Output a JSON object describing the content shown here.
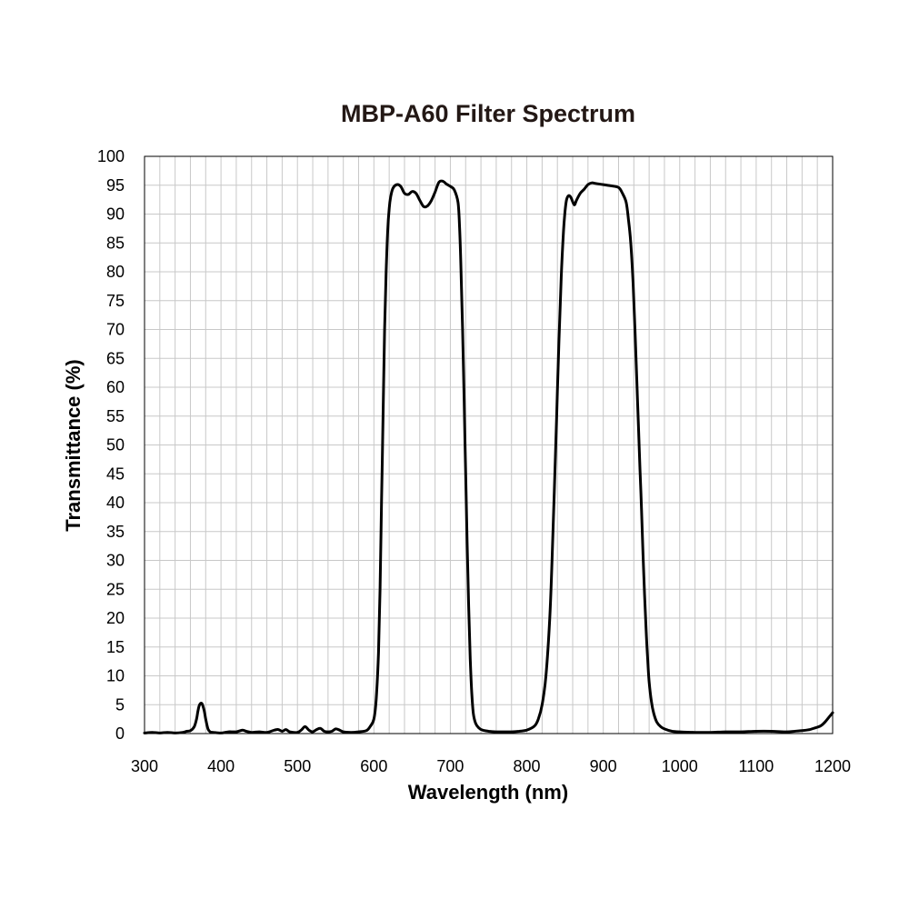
{
  "chart_data": {
    "type": "line",
    "title": "MBP-A60 Filter Spectrum",
    "xlabel": "Wavelength (nm)",
    "ylabel": "Transmittance (%)",
    "xlim": [
      300,
      1200
    ],
    "ylim": [
      0,
      100
    ],
    "x_ticks": [
      "300",
      "400",
      "500",
      "600",
      "700",
      "800",
      "900",
      "1000",
      "1100",
      "1200"
    ],
    "y_ticks": [
      "0",
      "5",
      "10",
      "15",
      "20",
      "25",
      "30",
      "35",
      "40",
      "45",
      "50",
      "55",
      "60",
      "65",
      "70",
      "75",
      "80",
      "85",
      "90",
      "95",
      "100"
    ],
    "grid": true,
    "line_color": "#000000",
    "series": [
      {
        "x": [
          300,
          310,
          320,
          330,
          340,
          350,
          355,
          360,
          365,
          368,
          370,
          372,
          375,
          378,
          380,
          383,
          386,
          390,
          400,
          410,
          420,
          428,
          433,
          440,
          450,
          460,
          470,
          475,
          480,
          485,
          490,
          500,
          505,
          510,
          515,
          520,
          525,
          530,
          535,
          540,
          545,
          550,
          555,
          560,
          570,
          580,
          590,
          595,
          600,
          603,
          606,
          608,
          610,
          612,
          614,
          616,
          618,
          620,
          622,
          625,
          630,
          635,
          640,
          645,
          650,
          655,
          660,
          665,
          670,
          675,
          680,
          685,
          690,
          695,
          700,
          705,
          710,
          712,
          714,
          716,
          718,
          720,
          722,
          724,
          726,
          728,
          730,
          733,
          737,
          742,
          750,
          760,
          770,
          780,
          790,
          800,
          810,
          815,
          820,
          825,
          830,
          833,
          836,
          839,
          842,
          845,
          848,
          850,
          852,
          855,
          858,
          862,
          865,
          870,
          875,
          880,
          885,
          890,
          900,
          910,
          920,
          925,
          930,
          933,
          936,
          939,
          942,
          945,
          948,
          950,
          952,
          954,
          956,
          958,
          960,
          963,
          966,
          970,
          975,
          980,
          990,
          1000,
          1020,
          1040,
          1060,
          1080,
          1100,
          1120,
          1140,
          1150,
          1160,
          1170,
          1175,
          1180,
          1185,
          1190,
          1195,
          1200
        ],
        "y": [
          0.1,
          0.2,
          0.1,
          0.2,
          0.1,
          0.2,
          0.4,
          0.5,
          1.2,
          2.5,
          4.0,
          5.0,
          5.2,
          4.0,
          2.5,
          0.8,
          0.3,
          0.2,
          0.1,
          0.3,
          0.3,
          0.6,
          0.4,
          0.2,
          0.3,
          0.2,
          0.6,
          0.7,
          0.4,
          0.7,
          0.3,
          0.2,
          0.6,
          1.2,
          0.6,
          0.3,
          0.7,
          0.9,
          0.4,
          0.3,
          0.4,
          0.8,
          0.6,
          0.3,
          0.2,
          0.3,
          0.5,
          1.2,
          2.5,
          6.0,
          14.0,
          25.0,
          40.0,
          55.0,
          70.0,
          80.0,
          87.0,
          91.0,
          93.0,
          94.5,
          95.1,
          94.8,
          93.6,
          93.4,
          93.9,
          93.6,
          92.4,
          91.3,
          91.4,
          92.3,
          93.8,
          95.5,
          95.7,
          95.2,
          94.8,
          94.2,
          92.0,
          88.0,
          80.0,
          70.0,
          58.0,
          45.0,
          33.0,
          22.0,
          13.0,
          7.0,
          3.5,
          1.8,
          1.0,
          0.6,
          0.4,
          0.3,
          0.3,
          0.3,
          0.4,
          0.6,
          1.3,
          2.5,
          5.0,
          10.0,
          20.0,
          30.0,
          42.0,
          55.0,
          68.0,
          79.0,
          87.0,
          90.5,
          92.5,
          93.2,
          92.8,
          91.6,
          92.4,
          93.6,
          94.3,
          95.1,
          95.4,
          95.3,
          95.1,
          94.9,
          94.6,
          93.6,
          92.0,
          89.0,
          85.0,
          78.0,
          68.0,
          57.0,
          46.0,
          39.0,
          31.0,
          24.0,
          18.0,
          13.0,
          9.0,
          5.5,
          3.5,
          2.0,
          1.2,
          0.8,
          0.4,
          0.3,
          0.2,
          0.2,
          0.3,
          0.3,
          0.4,
          0.4,
          0.3,
          0.4,
          0.5,
          0.7,
          0.9,
          1.1,
          1.4,
          2.0,
          2.8,
          3.6
        ]
      }
    ]
  }
}
